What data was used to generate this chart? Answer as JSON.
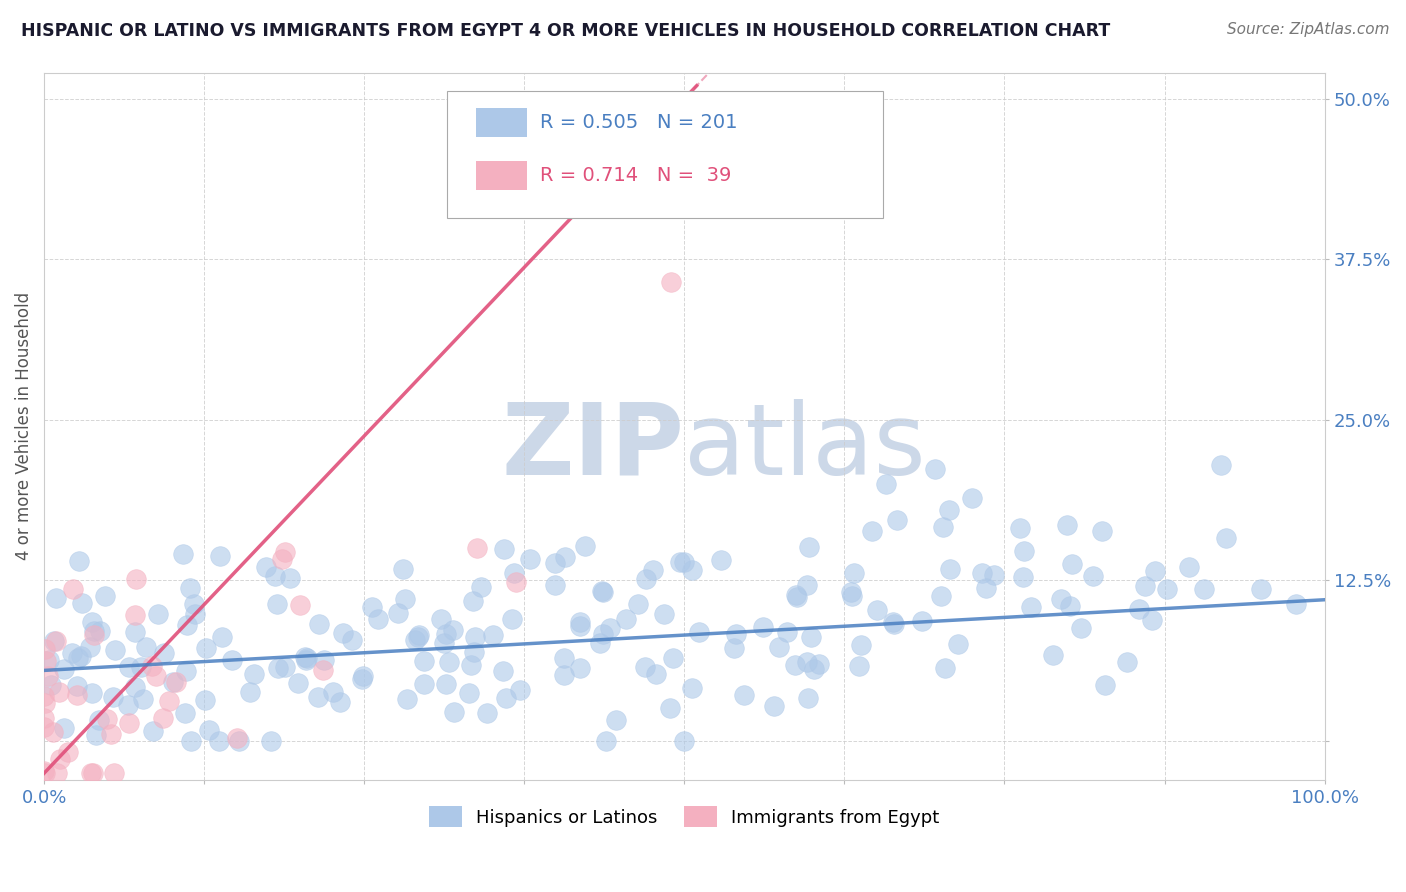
{
  "title": "HISPANIC OR LATINO VS IMMIGRANTS FROM EGYPT 4 OR MORE VEHICLES IN HOUSEHOLD CORRELATION CHART",
  "source": "Source: ZipAtlas.com",
  "ylabel": "4 or more Vehicles in Household",
  "xlim": [
    0,
    1.0
  ],
  "ylim": [
    -0.03,
    0.52
  ],
  "xticks": [
    0.0,
    0.125,
    0.25,
    0.375,
    0.5,
    0.625,
    0.75,
    0.875,
    1.0
  ],
  "xticklabels": [
    "0.0%",
    "",
    "",
    "",
    "",
    "",
    "",
    "",
    "100.0%"
  ],
  "yticks": [
    0.0,
    0.125,
    0.25,
    0.375,
    0.5
  ],
  "yticklabels": [
    "",
    "12.5%",
    "25.0%",
    "37.5%",
    "50.0%"
  ],
  "blue_R": 0.505,
  "blue_N": 201,
  "pink_R": 0.714,
  "pink_N": 39,
  "blue_color": "#adc8e8",
  "pink_color": "#f4b0c0",
  "blue_line_color": "#4a7fc1",
  "pink_line_color": "#e0507a",
  "blue_label": "Hispanics or Latinos",
  "pink_label": "Immigrants from Egypt",
  "watermark_zip": "ZIP",
  "watermark_atlas": "atlas",
  "watermark_color": "#ccd8e8",
  "background_color": "#ffffff",
  "grid_color": "#cccccc",
  "title_color": "#1a1a2e",
  "axis_label_color": "#555555",
  "tick_label_color": "#4a7fc1",
  "legend_text_color": "#4a7fc1",
  "pink_legend_text_color": "#e0507a"
}
